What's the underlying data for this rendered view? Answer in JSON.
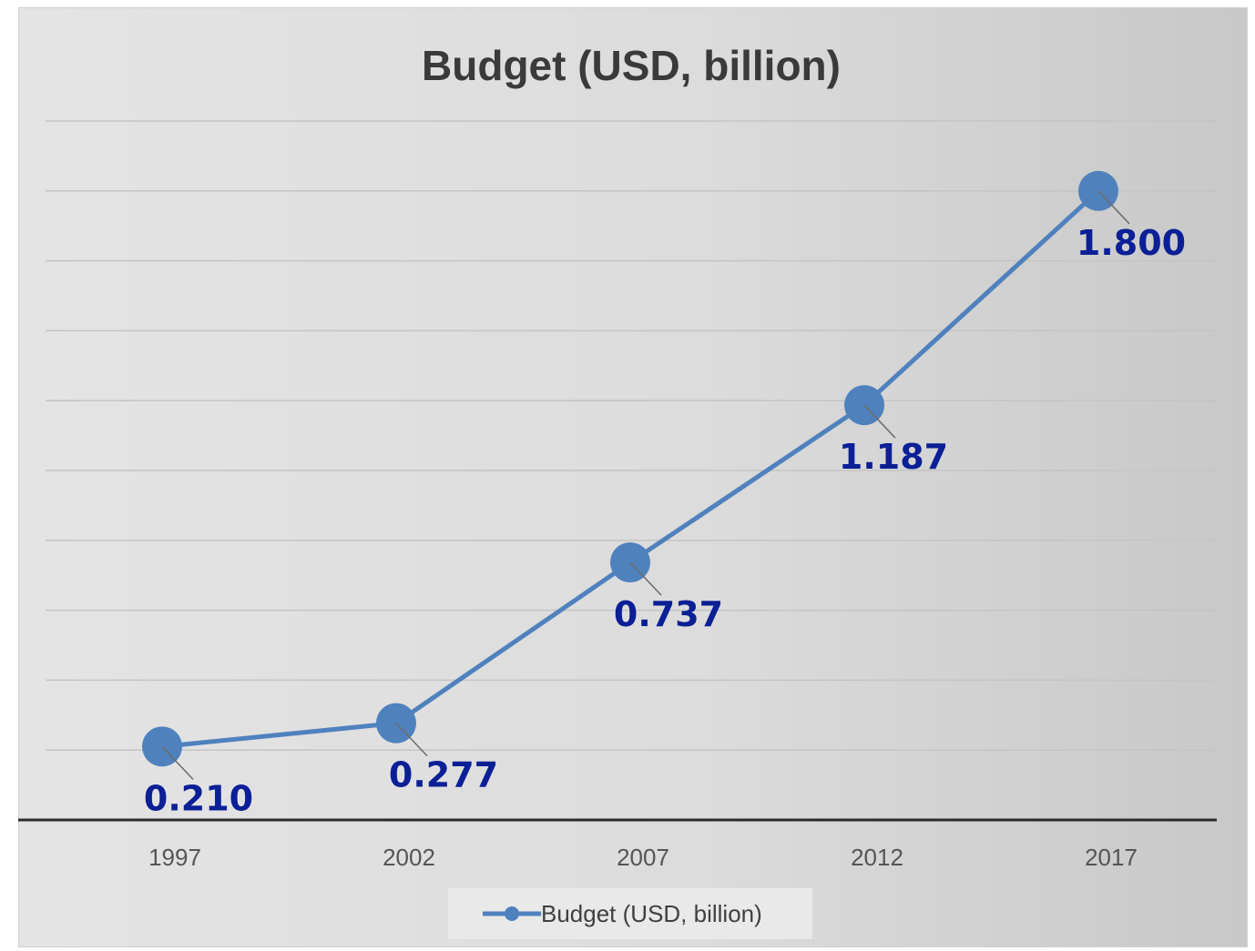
{
  "chart_data": {
    "type": "line",
    "title": "Budget (USD, billion)",
    "categories": [
      "1997",
      "2002",
      "2007",
      "2012",
      "2017"
    ],
    "series": [
      {
        "name": "Budget (USD, billion)",
        "values": [
          0.21,
          0.277,
          0.737,
          1.187,
          1.8
        ],
        "labels": [
          "0.210",
          "0.277",
          "0.737",
          "1.187",
          "1.800"
        ],
        "color": "#4f81bd"
      }
    ],
    "ylim": [
      0.0,
      2.0
    ],
    "y_tick_step": 0.2,
    "grid": true,
    "y_tick_labels_shown": false,
    "legend": "bottom",
    "label_color": "#0b1f96",
    "marker": "circle"
  }
}
